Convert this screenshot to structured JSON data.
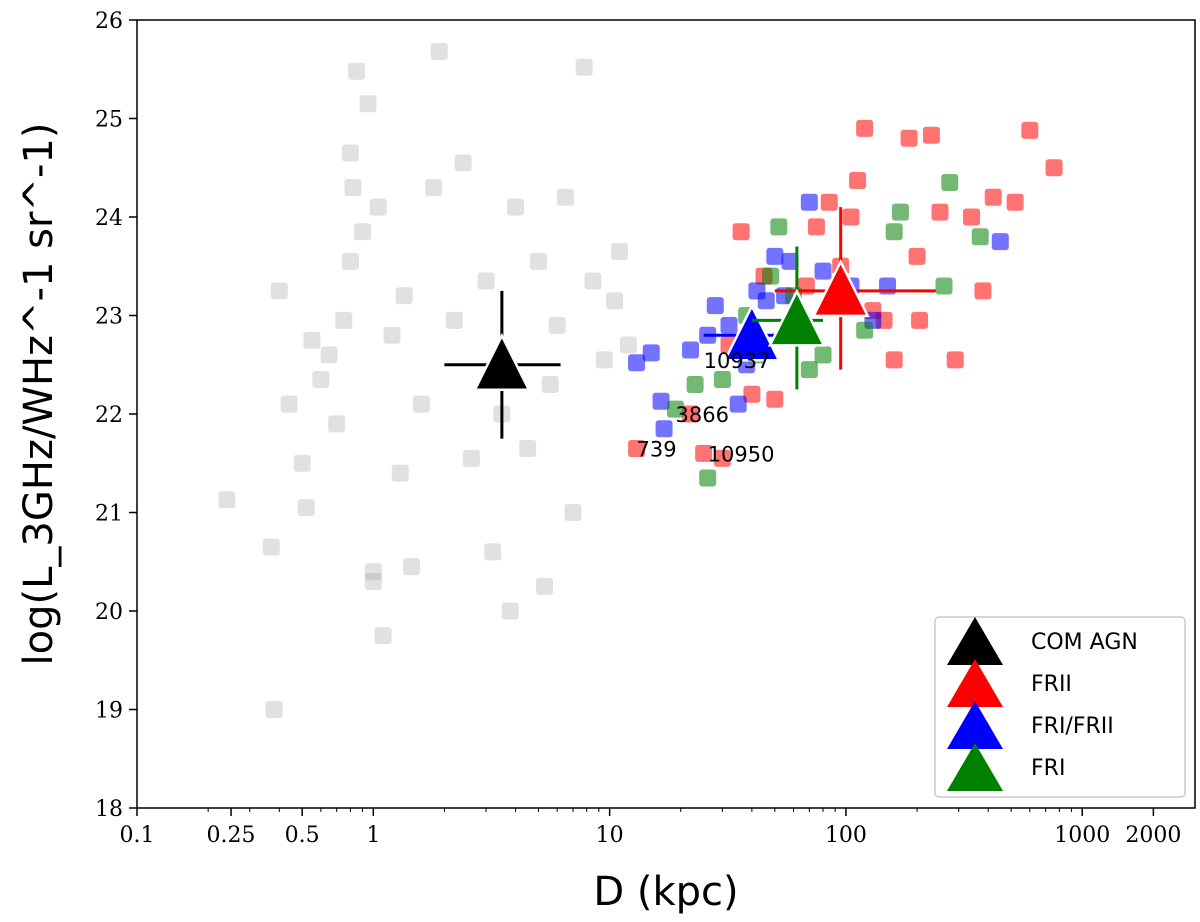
{
  "chart_data": {
    "type": "scatter",
    "title": "",
    "xlabel": "D (kpc)",
    "ylabel": "log(L_3GHz/WHz^-1 sr^-1)",
    "xscale": "log",
    "xlim": [
      0.1,
      3000
    ],
    "ylim": [
      18,
      26
    ],
    "xticks": [
      0.1,
      0.25,
      0.5,
      1,
      10,
      100,
      1000,
      2000
    ],
    "xtick_labels": [
      "0.1",
      "0.25",
      "0.5",
      "1",
      "10",
      "100",
      "1000",
      "2000"
    ],
    "yticks": [
      18,
      19,
      20,
      21,
      22,
      23,
      24,
      25,
      26
    ],
    "ytick_labels": [
      "18",
      "19",
      "20",
      "21",
      "22",
      "23",
      "24",
      "25",
      "26"
    ],
    "legend_position": "bottom-right",
    "legend": [
      {
        "label": "COM AGN",
        "color": "#000000"
      },
      {
        "label": "FRII",
        "color": "#ff0000"
      },
      {
        "label": "FRI/FRII",
        "color": "#0000ff"
      },
      {
        "label": "FRI",
        "color": "#008000"
      }
    ],
    "series": [
      {
        "name": "COM AGN",
        "color": "#9a9a9a",
        "marker": "square",
        "alpha": 0.3,
        "points": [
          [
            0.24,
            21.13
          ],
          [
            0.37,
            20.65
          ],
          [
            0.38,
            19.0
          ],
          [
            0.4,
            23.25
          ],
          [
            0.44,
            22.1
          ],
          [
            0.5,
            21.5
          ],
          [
            0.52,
            21.05
          ],
          [
            0.55,
            22.75
          ],
          [
            0.6,
            22.35
          ],
          [
            0.65,
            22.6
          ],
          [
            0.7,
            21.9
          ],
          [
            0.75,
            22.95
          ],
          [
            0.8,
            23.55
          ],
          [
            0.8,
            24.65
          ],
          [
            0.82,
            24.3
          ],
          [
            0.85,
            25.48
          ],
          [
            0.9,
            23.85
          ],
          [
            0.95,
            25.15
          ],
          [
            1.0,
            20.4
          ],
          [
            1.0,
            20.3
          ],
          [
            1.05,
            24.1
          ],
          [
            1.1,
            19.75
          ],
          [
            1.2,
            22.8
          ],
          [
            1.3,
            21.4
          ],
          [
            1.35,
            23.2
          ],
          [
            1.45,
            20.45
          ],
          [
            1.6,
            22.1
          ],
          [
            1.8,
            24.3
          ],
          [
            1.9,
            25.68
          ],
          [
            2.2,
            22.95
          ],
          [
            2.4,
            24.55
          ],
          [
            2.6,
            21.55
          ],
          [
            3.0,
            23.35
          ],
          [
            3.2,
            20.6
          ],
          [
            3.5,
            22.0
          ],
          [
            3.8,
            20.0
          ],
          [
            4.0,
            24.1
          ],
          [
            4.5,
            21.65
          ],
          [
            5.0,
            23.55
          ],
          [
            5.3,
            20.25
          ],
          [
            5.6,
            22.3
          ],
          [
            6.0,
            22.9
          ],
          [
            6.5,
            24.2
          ],
          [
            7.0,
            21.0
          ],
          [
            7.8,
            25.52
          ],
          [
            8.5,
            23.35
          ],
          [
            9.5,
            22.55
          ],
          [
            10.5,
            23.15
          ],
          [
            11.0,
            23.65
          ],
          [
            12.0,
            22.7
          ]
        ]
      },
      {
        "name": "FRII",
        "color": "#ff0000",
        "marker": "square",
        "points": [
          [
            13,
            21.65
          ],
          [
            22,
            22.0
          ],
          [
            25,
            21.6
          ],
          [
            30,
            21.55
          ],
          [
            32,
            22.7
          ],
          [
            36,
            23.85
          ],
          [
            40,
            22.2
          ],
          [
            45,
            23.4
          ],
          [
            50,
            22.15
          ],
          [
            58,
            22.8
          ],
          [
            68,
            23.3
          ],
          [
            75,
            23.9
          ],
          [
            85,
            24.15
          ],
          [
            95,
            23.5
          ],
          [
            105,
            24.0
          ],
          [
            112,
            24.37
          ],
          [
            120,
            24.9
          ],
          [
            130,
            23.05
          ],
          [
            145,
            22.95
          ],
          [
            160,
            22.55
          ],
          [
            185,
            24.8
          ],
          [
            200,
            23.6
          ],
          [
            205,
            22.95
          ],
          [
            230,
            24.83
          ],
          [
            250,
            24.05
          ],
          [
            290,
            22.55
          ],
          [
            340,
            24.0
          ],
          [
            380,
            23.25
          ],
          [
            420,
            24.2
          ],
          [
            520,
            24.15
          ],
          [
            600,
            24.88
          ],
          [
            760,
            24.5
          ]
        ]
      },
      {
        "name": "FRI/FRII",
        "color": "#0000ff",
        "marker": "square",
        "points": [
          [
            13,
            22.52
          ],
          [
            15,
            22.62
          ],
          [
            16.5,
            22.13
          ],
          [
            17,
            21.85
          ],
          [
            22,
            22.65
          ],
          [
            26,
            22.8
          ],
          [
            28,
            23.1
          ],
          [
            32,
            22.9
          ],
          [
            35,
            22.1
          ],
          [
            38,
            22.5
          ],
          [
            42,
            23.25
          ],
          [
            46,
            23.15
          ],
          [
            50,
            23.6
          ],
          [
            55,
            23.2
          ],
          [
            58,
            23.55
          ],
          [
            70,
            24.15
          ],
          [
            80,
            23.45
          ],
          [
            105,
            23.3
          ],
          [
            130,
            22.95
          ],
          [
            150,
            23.3
          ],
          [
            450,
            23.75
          ]
        ]
      },
      {
        "name": "FRI",
        "color": "#008000",
        "marker": "square",
        "points": [
          [
            19,
            22.05
          ],
          [
            23,
            22.3
          ],
          [
            26,
            21.35
          ],
          [
            30,
            22.35
          ],
          [
            38,
            23.0
          ],
          [
            42,
            22.6
          ],
          [
            48,
            23.4
          ],
          [
            52,
            23.9
          ],
          [
            60,
            23.2
          ],
          [
            70,
            22.45
          ],
          [
            80,
            22.6
          ],
          [
            120,
            22.85
          ],
          [
            160,
            23.85
          ],
          [
            170,
            24.05
          ],
          [
            260,
            23.3
          ],
          [
            275,
            24.35
          ],
          [
            370,
            23.8
          ]
        ]
      }
    ],
    "median_markers": [
      {
        "name": "COM AGN",
        "color": "#000000",
        "x": 3.5,
        "y": 22.5,
        "xerr": [
          2.0,
          6.2
        ],
        "yerr": [
          21.75,
          23.25
        ]
      },
      {
        "name": "FRII",
        "color": "#ff0000",
        "x": 95,
        "y": 23.25,
        "xerr": [
          50,
          240
        ],
        "yerr": [
          22.45,
          24.1
        ]
      },
      {
        "name": "FRI/FRII",
        "color": "#0000ff",
        "x": 40,
        "y": 22.8,
        "xerr": [
          25,
          55
        ],
        "yerr": [
          22.6,
          23.0
        ]
      },
      {
        "name": "FRI",
        "color": "#008000",
        "x": 62,
        "y": 22.95,
        "xerr": [
          40,
          80
        ],
        "yerr": [
          22.25,
          23.7
        ]
      }
    ],
    "annotations": [
      {
        "text": "10937",
        "x": 25,
        "y": 22.55
      },
      {
        "text": "3866",
        "x": 19,
        "y": 22.0
      },
      {
        "text": "739",
        "x": 13,
        "y": 21.65
      },
      {
        "text": "10950",
        "x": 26,
        "y": 21.6
      }
    ]
  }
}
